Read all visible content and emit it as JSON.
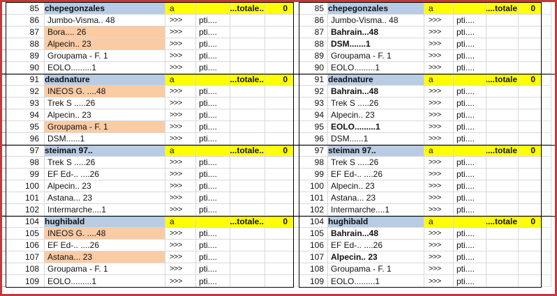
{
  "labels": {
    "a": "a",
    "arrows": ">>>",
    "pti": "pti....",
    "total_value": "0",
    "totale_left": "......totale..",
    "totale_right": "......totale"
  },
  "colors": {
    "header_blue": "#b8cce4",
    "header_yellow": "#ffff00",
    "highlight_orange": "#fbcba4",
    "outer_border_red": "#c13a3a",
    "gridline_gray": "#d8d8d8",
    "margin_gridline_red": "#dc9f9f"
  },
  "panels": [
    {
      "side": "left",
      "totale_label": "......totale..",
      "groups": [
        {
          "header": {
            "num": "85",
            "name": "chepegonzales"
          },
          "rows": [
            {
              "num": "86",
              "name": "Jumbo-Visma.. 48",
              "style": "normal"
            },
            {
              "num": "87",
              "name": "Bora.... 26",
              "style": "highlight"
            },
            {
              "num": "88",
              "name": "Alpecin.. 23",
              "style": "highlight"
            },
            {
              "num": "89",
              "name": "Groupama - F. 1",
              "style": "normal"
            },
            {
              "num": "90",
              "name": "EOLO.........1",
              "style": "normal"
            }
          ]
        },
        {
          "header": {
            "num": "91",
            "name": "deadnature"
          },
          "rows": [
            {
              "num": "92",
              "name": "INEOS G. ....48",
              "style": "highlight"
            },
            {
              "num": "93",
              "name": "Trek S .....26",
              "style": "normal"
            },
            {
              "num": "94",
              "name": "Alpecin.. 23",
              "style": "normal"
            },
            {
              "num": "95",
              "name": "Groupama - F. 1",
              "style": "highlight"
            },
            {
              "num": "96",
              "name": "DSM......1",
              "style": "normal"
            }
          ]
        },
        {
          "header": {
            "num": "97",
            "name": "steiman 97.."
          },
          "rows": [
            {
              "num": "98",
              "name": "Trek S .....26",
              "style": "normal"
            },
            {
              "num": "99",
              "name": "EF Ed-.. ....26",
              "style": "normal"
            },
            {
              "num": "100",
              "name": "Alpecin.. 23",
              "style": "normal"
            },
            {
              "num": "101",
              "name": "Astana... 23",
              "style": "normal"
            },
            {
              "num": "102",
              "name": "Intermarche....1",
              "style": "normal"
            }
          ]
        },
        {
          "header": {
            "num": "104",
            "name": "hughibald"
          },
          "rows": [
            {
              "num": "105",
              "name": "INEOS G. ....48",
              "style": "highlight"
            },
            {
              "num": "106",
              "name": "EF Ed-.. ....26",
              "style": "normal"
            },
            {
              "num": "107",
              "name": "Astana... 23",
              "style": "highlight"
            },
            {
              "num": "108",
              "name": "Groupama - F. 1",
              "style": "normal"
            },
            {
              "num": "109",
              "name": "EOLO.........1",
              "style": "normal"
            }
          ]
        }
      ]
    },
    {
      "side": "right",
      "totale_label": "......totale",
      "groups": [
        {
          "header": {
            "num": "85",
            "name": "chepegonzales"
          },
          "rows": [
            {
              "num": "86",
              "name": "Jumbo-Visma.. 48",
              "style": "normal"
            },
            {
              "num": "87",
              "name": "Bahrain...48",
              "style": "bold"
            },
            {
              "num": "88",
              "name": "DSM.......1",
              "style": "bold"
            },
            {
              "num": "89",
              "name": "Groupama - F. 1",
              "style": "normal"
            },
            {
              "num": "90",
              "name": "EOLO.........1",
              "style": "normal"
            }
          ]
        },
        {
          "header": {
            "num": "91",
            "name": "deadnature"
          },
          "rows": [
            {
              "num": "92",
              "name": "Bahrain...48",
              "style": "bold"
            },
            {
              "num": "93",
              "name": "Trek S .....26",
              "style": "normal"
            },
            {
              "num": "94",
              "name": "Alpecin.. 23",
              "style": "normal"
            },
            {
              "num": "95",
              "name": "EOLO.........1",
              "style": "bold"
            },
            {
              "num": "96",
              "name": "DSM......1",
              "style": "normal"
            }
          ]
        },
        {
          "header": {
            "num": "97",
            "name": "steiman 97.."
          },
          "rows": [
            {
              "num": "98",
              "name": "Trek S .....26",
              "style": "normal"
            },
            {
              "num": "99",
              "name": "EF Ed-.. ....26",
              "style": "normal"
            },
            {
              "num": "100",
              "name": "Alpecin.. 23",
              "style": "normal"
            },
            {
              "num": "101",
              "name": "Astana... 23",
              "style": "normal"
            },
            {
              "num": "102",
              "name": "Intermarche....1",
              "style": "normal"
            }
          ]
        },
        {
          "header": {
            "num": "104",
            "name": "hughibald"
          },
          "rows": [
            {
              "num": "105",
              "name": "Bahrain...48",
              "style": "bold"
            },
            {
              "num": "106",
              "name": "EF Ed-.. ....26",
              "style": "normal"
            },
            {
              "num": "107",
              "name": "Alpecin.. 23",
              "style": "bold"
            },
            {
              "num": "108",
              "name": "Groupama - F. 1",
              "style": "normal"
            },
            {
              "num": "109",
              "name": "EOLO.........1",
              "style": "normal"
            }
          ]
        }
      ]
    }
  ]
}
